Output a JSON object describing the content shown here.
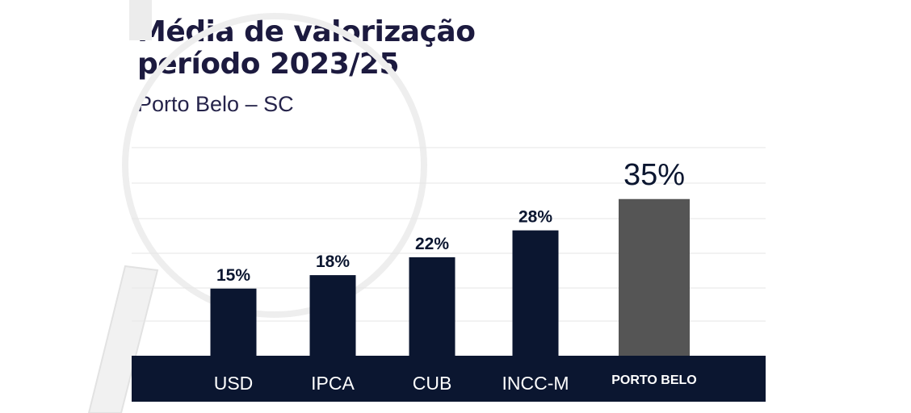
{
  "title_lines": [
    "Média de valorização",
    "período 2023/25"
  ],
  "subtitle": "Porto Belo – SC",
  "colors": {
    "title": "#1c1a3f",
    "subtitle": "#25234a",
    "bar": "#0b1630",
    "highlight_bar": "#555555",
    "band": "#0b1630",
    "band_text": "#ffffff",
    "label": "#0b1630",
    "grid": "#e6e6e6"
  },
  "chart_data": {
    "type": "bar",
    "categories": [
      "USD",
      "IPCA",
      "CUB",
      "INCC-M",
      "PORTO BELO"
    ],
    "values": [
      15,
      18,
      22,
      28,
      35
    ],
    "value_labels": [
      "15%",
      "18%",
      "22%",
      "28%",
      "35%"
    ],
    "highlight_index": 4,
    "title": "Média de valorização período 2023/25",
    "subtitle": "Porto Belo – SC",
    "xlabel": "",
    "ylabel": "",
    "ylim": [
      0,
      46
    ],
    "grid": true,
    "legend": "none"
  }
}
